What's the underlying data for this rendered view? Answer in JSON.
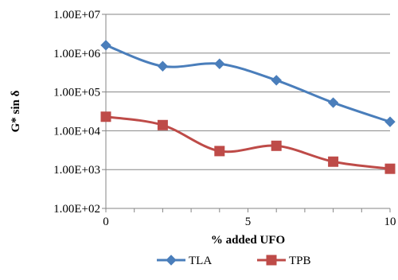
{
  "chart_data": {
    "type": "line",
    "xlabel": "% added UFO",
    "ylabel": "G* sin δ",
    "xlim": [
      0,
      10
    ],
    "ylim": [
      100,
      10000000
    ],
    "yscale": "log",
    "xticks": [
      "0",
      "5",
      "10"
    ],
    "yticks": [
      "1.00E+02",
      "1.00E+03",
      "1.00E+04",
      "1.00E+05",
      "1.00E+06",
      "1.00E+07"
    ],
    "grid": "horizontal",
    "legend_position": "bottom",
    "smoothed": true,
    "series": [
      {
        "name": "TLA",
        "color": "#4a7ebb",
        "marker": "diamond",
        "x": [
          0,
          2,
          4,
          6,
          8,
          10
        ],
        "y": [
          1600000,
          460000,
          530000,
          200000,
          53000,
          17000
        ]
      },
      {
        "name": "TPB",
        "color": "#be4b48",
        "marker": "square",
        "x": [
          0,
          2,
          4,
          6,
          8,
          10
        ],
        "y": [
          23000,
          14000,
          3000,
          4100,
          1600,
          1050
        ]
      }
    ]
  }
}
